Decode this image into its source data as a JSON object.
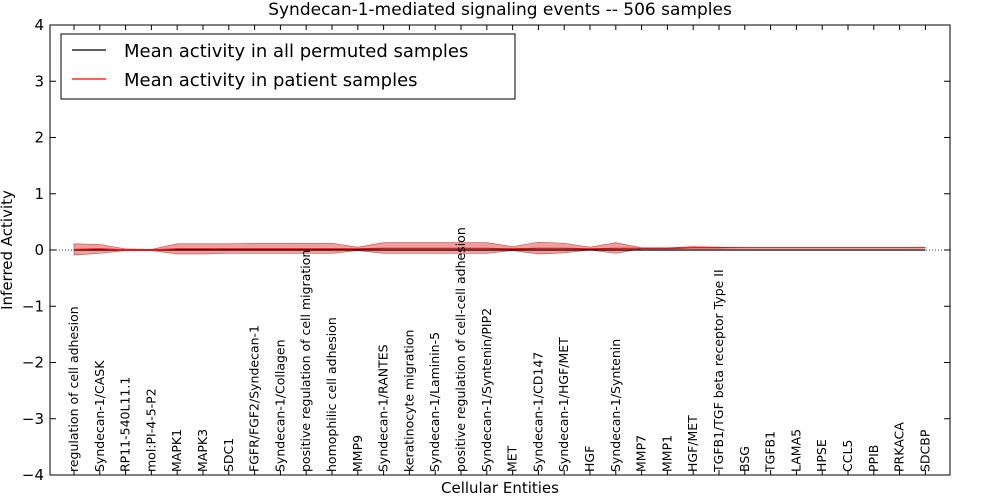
{
  "chart_data": {
    "type": "line",
    "title": "Syndecan-1-mediated signaling events -- 506 samples",
    "xlabel": "Cellular Entities",
    "ylabel": "Inferred Activity",
    "ylim": [
      -4,
      4
    ],
    "yticks": [
      "−4",
      "−3",
      "−2",
      "−1",
      "0",
      "1",
      "2",
      "3",
      "4"
    ],
    "yticks_values": [
      -4,
      -3,
      -2,
      -1,
      0,
      1,
      2,
      3,
      4
    ],
    "legend": {
      "position": "top-left",
      "entries": [
        {
          "label": "Mean activity in all permuted samples",
          "color": "#000000"
        },
        {
          "label": "Mean activity in patient samples",
          "color": "#ff0000"
        }
      ]
    },
    "categories": [
      "regulation of cell adhesion",
      "Syndecan-1/CASK",
      "RP11-540L11.1",
      "mol:PI-4-5-P2",
      "MAPK1",
      "MAPK3",
      "SDC1",
      "FGFR/FGF2/Syndecan-1",
      "Syndecan-1/Collagen",
      "positive regulation of cell migration",
      "homophilic cell adhesion",
      "MMP9",
      "Syndecan-1/RANTES",
      "keratinocyte migration",
      "Syndecan-1/Laminin-5",
      "positive regulation of cell-cell adhesion",
      "Syndecan-1/Syntenin/PIP2",
      "MET",
      "Syndecan-1/CD147",
      "Syndecan-1/HGF/MET",
      "HGF",
      "Syndecan-1/Syntenin",
      "MMP7",
      "MMP1",
      "HGF/MET",
      "TGFB1/TGF beta receptor Type II",
      "BSG",
      "TGFB1",
      "LAMA5",
      "HPSE",
      "CCL5",
      "PPIB",
      "PRKACA",
      "SDCBP"
    ],
    "series": [
      {
        "name": "Mean activity in all permuted samples",
        "color": "#000000",
        "values": [
          0.0,
          0.0,
          0.0,
          0.0,
          0.0,
          0.0,
          0.0,
          0.0,
          0.0,
          0.0,
          0.0,
          0.0,
          0.0,
          0.0,
          0.0,
          0.0,
          0.0,
          0.0,
          0.0,
          0.0,
          0.0,
          0.0,
          0.0,
          0.0,
          0.0,
          0.0,
          0.0,
          0.0,
          0.0,
          0.0,
          0.0,
          0.0,
          0.0,
          0.0
        ]
      },
      {
        "name": "Mean activity in patient samples",
        "color": "#ff0000",
        "values": [
          0.01,
          0.02,
          0.0,
          0.0,
          0.02,
          0.02,
          0.02,
          0.02,
          0.02,
          0.02,
          0.02,
          0.02,
          0.03,
          0.03,
          0.03,
          0.03,
          0.03,
          0.02,
          0.03,
          0.03,
          0.02,
          0.03,
          0.03,
          0.03,
          0.04,
          0.04,
          0.04,
          0.04,
          0.04,
          0.04,
          0.04,
          0.04,
          0.04,
          0.04
        ],
        "upper": [
          0.11,
          0.1,
          0.02,
          0.01,
          0.11,
          0.11,
          0.11,
          0.12,
          0.12,
          0.12,
          0.12,
          0.05,
          0.13,
          0.13,
          0.13,
          0.13,
          0.13,
          0.06,
          0.14,
          0.12,
          0.05,
          0.13,
          0.04,
          0.04,
          0.06,
          0.05,
          0.04,
          0.04,
          0.04,
          0.04,
          0.04,
          0.04,
          0.04,
          0.04
        ],
        "lower": [
          -0.09,
          -0.06,
          -0.01,
          -0.01,
          -0.07,
          -0.07,
          -0.06,
          -0.06,
          -0.06,
          -0.06,
          -0.06,
          -0.01,
          -0.06,
          -0.06,
          -0.06,
          -0.06,
          -0.06,
          -0.01,
          -0.07,
          -0.05,
          0.0,
          -0.06,
          0.02,
          0.02,
          0.03,
          0.03,
          0.04,
          0.04,
          0.04,
          0.04,
          0.04,
          0.04,
          0.04,
          0.04
        ]
      }
    ],
    "grid": false
  }
}
